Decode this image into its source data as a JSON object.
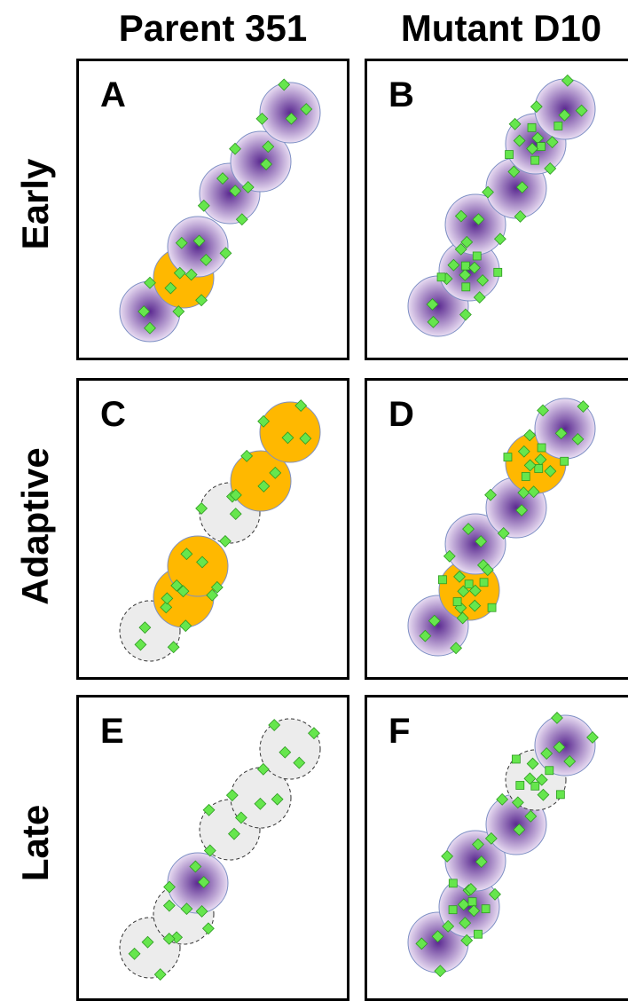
{
  "columns": [
    "Parent 351",
    "Mutant D10"
  ],
  "rows": [
    "Early",
    "Adaptive",
    "Late"
  ],
  "colors": {
    "purple_center": "#5b2a91",
    "purple_edge": "#e8dcf2",
    "orange": "#ffb800",
    "ghost": "#ececec",
    "marker": "#66e64d",
    "marker_stroke": "#2e9a22"
  },
  "panels": [
    {
      "label": "A",
      "cells": [
        "purple",
        "orange",
        "purple",
        "purple",
        "purple",
        "purple"
      ],
      "dense": []
    },
    {
      "label": "B",
      "cells": [
        "purple",
        "purple",
        "purple",
        "purple",
        "purple",
        "purple"
      ],
      "dense": [
        1,
        4
      ]
    },
    {
      "label": "C",
      "cells": [
        "ghost",
        "orange",
        "orange",
        "ghost",
        "orange",
        "orange"
      ],
      "dense": []
    },
    {
      "label": "D",
      "cells": [
        "purple",
        "orange",
        "purple",
        "purple",
        "orange",
        "purple"
      ],
      "dense": [
        1,
        4
      ]
    },
    {
      "label": "E",
      "cells": [
        "ghost",
        "ghost",
        "purple",
        "ghost",
        "ghost",
        "ghost"
      ],
      "dense": []
    },
    {
      "label": "F",
      "cells": [
        "purple",
        "purple",
        "purple",
        "purple",
        "ghost",
        "purple"
      ],
      "dense": [
        1,
        4
      ]
    }
  ]
}
